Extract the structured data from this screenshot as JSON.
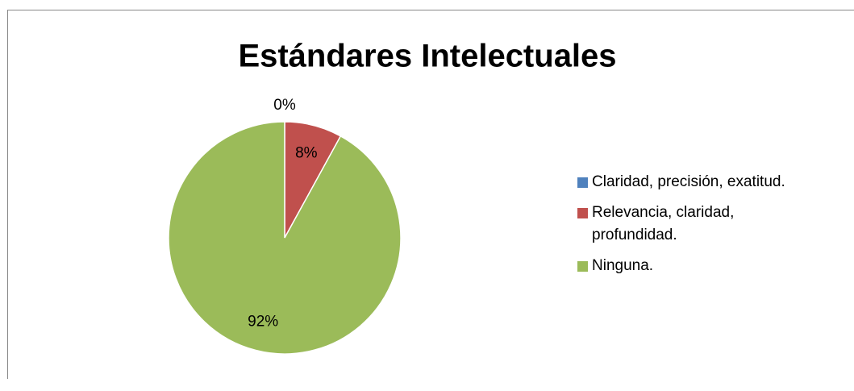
{
  "chart_data": {
    "type": "pie",
    "title": "Estándares  Intelectuales",
    "categories": [
      "Claridad, precisión, exatitud.",
      "Relevancia, claridad, profundidad.",
      "Ninguna."
    ],
    "values": [
      0,
      8,
      92
    ],
    "value_labels": [
      "0%",
      "8%",
      "92%"
    ],
    "colors": [
      "#4f81bd",
      "#c0504d",
      "#9bbb59"
    ],
    "legend": "right"
  }
}
